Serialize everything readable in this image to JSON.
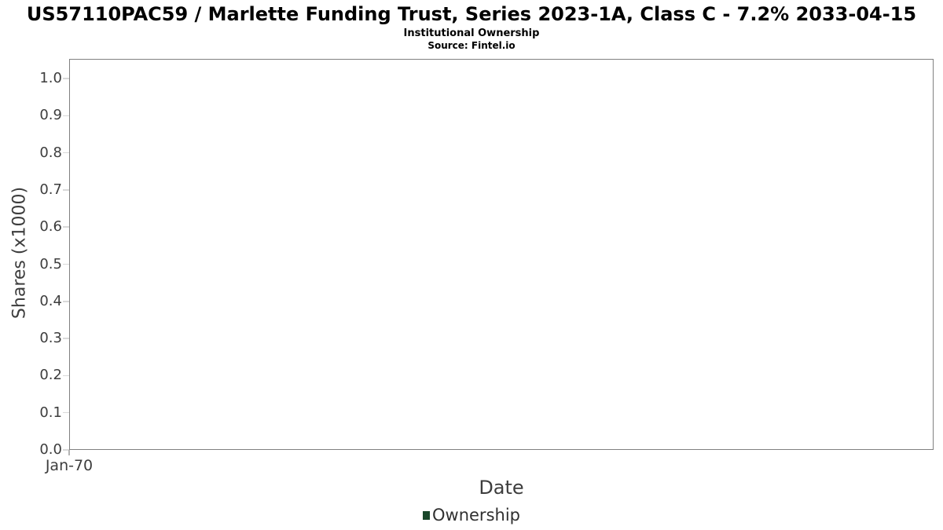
{
  "colors": {
    "series_green": "#1a472a",
    "axis_line": "#808080",
    "gridline": "#e8e8e8",
    "tick_mark": "#d9d9d9",
    "tick_label": "#3d3d3d",
    "axis_title": "#3d3d3d",
    "legend_text": "#303030",
    "title_text": "#000000",
    "background": "#ffffff"
  },
  "chart_data": {
    "type": "line",
    "title": "US57110PAC59 / Marlette Funding Trust, Series 2023-1A, Class C - 7.2% 2033-04-15",
    "subtitle": "Institutional Ownership",
    "source": "Source: Fintel.io",
    "xlabel": "Date",
    "ylabel": "Shares (x1000)",
    "x_tick_labels": [
      "Jan-70"
    ],
    "y_tick_labels": [
      "0.0",
      "0.1",
      "0.2",
      "0.3",
      "0.4",
      "0.5",
      "0.6",
      "0.7",
      "0.8",
      "0.9",
      "1.0"
    ],
    "ylim": [
      0,
      1.053
    ],
    "xlim_note": "empty time axis, single origin tick Jan-70",
    "grid": "horizontal",
    "legend_position": "bottom",
    "series": [
      {
        "name": "Ownership",
        "color": "#1a472a",
        "x": [],
        "values": []
      }
    ]
  }
}
